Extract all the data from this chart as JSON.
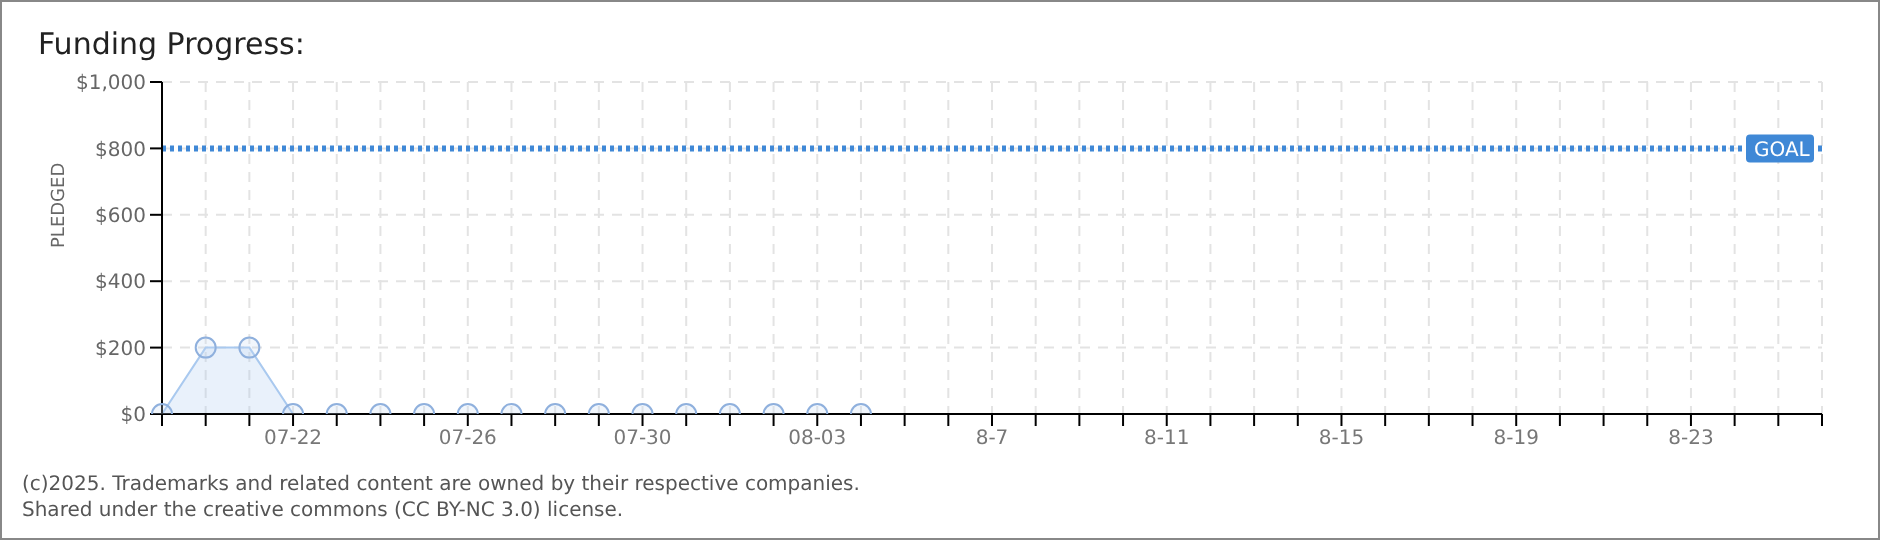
{
  "chart_data": {
    "type": "area",
    "title": "Funding Progress:",
    "ylabel": "PLEDGED",
    "categories": [
      null,
      null,
      null,
      "07-22",
      null,
      null,
      null,
      "07-26",
      null,
      null,
      null,
      "07-30",
      null,
      null,
      null,
      "08-03",
      null,
      null,
      null,
      "8-7",
      null,
      null,
      null,
      "8-11",
      null,
      null,
      null,
      "8-15",
      null,
      null,
      null,
      "8-19",
      null,
      null,
      null,
      "8-23",
      null,
      null,
      null
    ],
    "series": [
      {
        "color": "#a9c9ef",
        "values": [
          0,
          200,
          200,
          0,
          0,
          0,
          0,
          0,
          0,
          0,
          0,
          0,
          0,
          0,
          0,
          0,
          0,
          null,
          null,
          null,
          null,
          null,
          null,
          null,
          null,
          null,
          null,
          null,
          null,
          null,
          null,
          null,
          null,
          null,
          null,
          null,
          null,
          null,
          null
        ]
      }
    ],
    "ylim": [
      0,
      1000
    ],
    "yticks": [
      {
        "value": 0,
        "label": "$0"
      },
      {
        "value": 200,
        "label": "$200"
      },
      {
        "value": 400,
        "label": "$400"
      },
      {
        "value": 600,
        "label": "$600"
      },
      {
        "value": 800,
        "label": "$800"
      },
      {
        "value": 1000,
        "label": "$1,000"
      }
    ],
    "ref_lines": [
      {
        "axis": "y",
        "value": 800,
        "label": "GOAL",
        "color": "#3f88d6",
        "line_style": "dotted"
      }
    ],
    "grid": true,
    "marker": "circle",
    "annotations": [
      "(c)2025. Trademarks and related content are owned by their respective companies.",
      "Shared under the creative commons (CC BY-NC 3.0) license."
    ]
  }
}
